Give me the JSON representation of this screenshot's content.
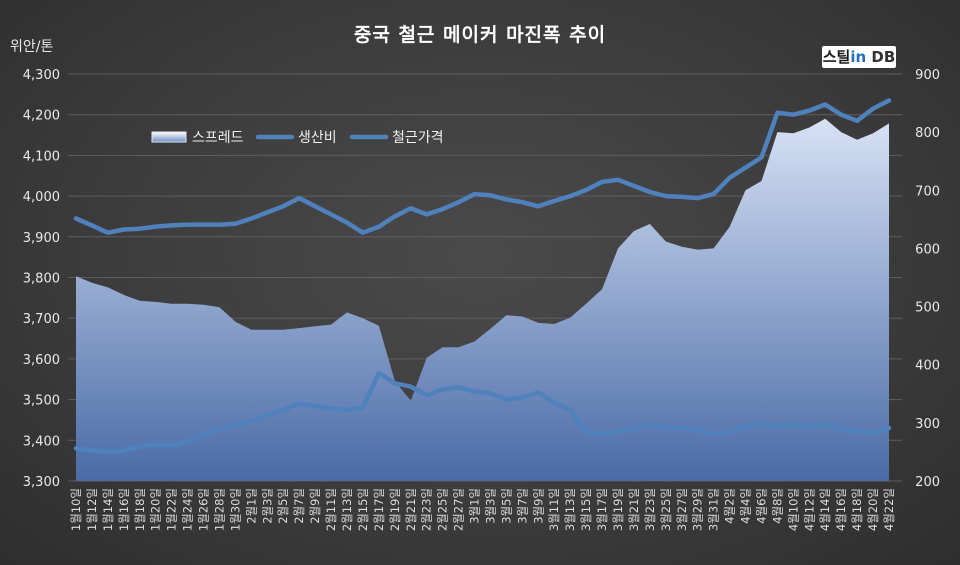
{
  "title": "중국 철근 메이커 마진폭 추이",
  "y_left_unit": "위안/톤",
  "logo": {
    "prefix": "스틸",
    "mid": "in",
    "suffix": "DB"
  },
  "colors": {
    "line": "#4f81bd",
    "area_top": "#d6e2f5",
    "area_bottom": "#3f5f9a",
    "text": "#e8e8e8",
    "grid": "#5e5e5e"
  },
  "chart_data": {
    "type": "area",
    "title": "중국 철근 메이커 마진폭 추이",
    "ylabel_left": "위안/톤",
    "left_axis": {
      "ylim": [
        3300,
        4300
      ],
      "ticks": [
        "3,300",
        "3,400",
        "3,500",
        "3,600",
        "3,700",
        "3,800",
        "3,900",
        "4,000",
        "4,100",
        "4,200",
        "4,300"
      ]
    },
    "right_axis": {
      "ylim": [
        200,
        900
      ],
      "ticks": [
        "200",
        "300",
        "400",
        "500",
        "600",
        "700",
        "800",
        "900"
      ]
    },
    "grid": "horizontal",
    "legend": "upper-left",
    "x_labels": [
      "1월10일",
      "1월12일",
      "1월14일",
      "1월16일",
      "1월18일",
      "1월20일",
      "1월22일",
      "1월24일",
      "1월26일",
      "1월28일",
      "1월30일",
      "2월1일",
      "2월3일",
      "2월5일",
      "2월7일",
      "2월9일",
      "2월11일",
      "2월13일",
      "2월15일",
      "2월17일",
      "2월19일",
      "2월21일",
      "2월23일",
      "2월25일",
      "2월27일",
      "3월1일",
      "3월3일",
      "3월5일",
      "3월7일",
      "3월9일",
      "3월11일",
      "3월13일",
      "3월15일",
      "3월17일",
      "3월19일",
      "3월21일",
      "3월23일",
      "3월25일",
      "3월27일",
      "3월29일",
      "3월31일",
      "4월2일",
      "4월4일",
      "4월6일",
      "4월8일",
      "4월10일",
      "4월12일",
      "4월14일",
      "4월16일",
      "4월18일",
      "4월20일",
      "4월22일"
    ],
    "series": [
      {
        "name": "스프레드",
        "axis": "right",
        "kind": "area",
        "values": [
          552,
          541,
          533,
          520,
          510,
          508,
          505,
          505,
          503,
          499,
          474,
          460,
          460,
          460,
          463,
          466,
          469,
          490,
          480,
          467,
          372,
          338,
          412,
          430,
          430,
          440,
          462,
          485,
          483,
          472,
          470,
          481,
          505,
          530,
          600,
          630,
          642,
          612,
          603,
          598,
          600,
          637,
          700,
          716,
          800,
          798,
          808,
          823,
          800,
          787,
          798,
          815
        ]
      },
      {
        "name": "생산비",
        "axis": "left",
        "kind": "line",
        "values": [
          3380,
          3375,
          3372,
          3374,
          3385,
          3390,
          3388,
          3398,
          3415,
          3428,
          3440,
          3448,
          3462,
          3475,
          3490,
          3485,
          3478,
          3475,
          3480,
          3565,
          3540,
          3532,
          3510,
          3525,
          3530,
          3520,
          3515,
          3500,
          3505,
          3518,
          3492,
          3475,
          3420,
          3415,
          3422,
          3430,
          3438,
          3430,
          3432,
          3425,
          3415,
          3420,
          3435,
          3440,
          3435,
          3438,
          3432,
          3440,
          3428,
          3422,
          3418,
          3430
        ]
      },
      {
        "name": "철근가격",
        "axis": "left",
        "kind": "line",
        "values": [
          3945,
          3928,
          3910,
          3918,
          3920,
          3925,
          3928,
          3930,
          3930,
          3930,
          3932,
          3945,
          3960,
          3975,
          3995,
          3975,
          3955,
          3935,
          3910,
          3925,
          3950,
          3970,
          3955,
          3968,
          3985,
          4005,
          4002,
          3992,
          3985,
          3975,
          3988,
          4000,
          4015,
          4035,
          4040,
          4025,
          4010,
          4000,
          3998,
          3995,
          4005,
          4045,
          4070,
          4095,
          4205,
          4200,
          4210,
          4225,
          4200,
          4185,
          4215,
          4235
        ]
      }
    ]
  }
}
